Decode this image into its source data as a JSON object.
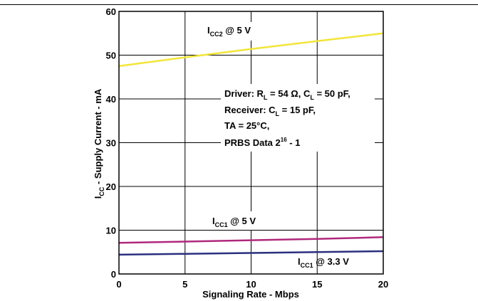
{
  "chart_data": {
    "type": "line",
    "xlabel": "Signaling Rate - Mbps",
    "ylabel": {
      "main": "I",
      "sub": "CC",
      "rest": " - Supply Current - mA"
    },
    "xlim": [
      0,
      20
    ],
    "ylim": [
      0,
      60
    ],
    "x_ticks": [
      "0",
      "5",
      "10",
      "15",
      "20"
    ],
    "y_ticks": [
      "0",
      "10",
      "20",
      "30",
      "40",
      "50",
      "60"
    ],
    "grid": true,
    "series": [
      {
        "name": {
          "main": "I",
          "sub": "CC2",
          "rest": " @ 5 V"
        },
        "color": "#f2e53a",
        "x": [
          0,
          5,
          10,
          15,
          20
        ],
        "y": [
          47.5,
          49.5,
          51.4,
          53.2,
          55.0
        ]
      },
      {
        "name": {
          "main": "I",
          "sub": "CC1",
          "rest": " @ 5 V"
        },
        "color": "#b0287c",
        "x": [
          0,
          5,
          10,
          15,
          20
        ],
        "y": [
          7.1,
          7.4,
          7.7,
          8.0,
          8.4
        ]
      },
      {
        "name": {
          "main": "I",
          "sub": "CC1",
          "rest": " @ 3.3 V"
        },
        "color": "#2b2f7f",
        "x": [
          0,
          5,
          10,
          15,
          20
        ],
        "y": [
          4.4,
          4.6,
          4.8,
          5.0,
          5.2
        ]
      }
    ],
    "conditions": {
      "line1": {
        "a": "Driver: R",
        "a_sub": "L",
        "b": " = 54 Ω, C",
        "b_sub": "L",
        "c": " = 50 pF,"
      },
      "line2": {
        "a": "Receiver: C",
        "a_sub": "L",
        "b": " = 15 pF,"
      },
      "line3": "TA = 25°C,",
      "line4": {
        "a": "PRBS Data 2",
        "sup": "16",
        "b": " - 1"
      }
    }
  }
}
